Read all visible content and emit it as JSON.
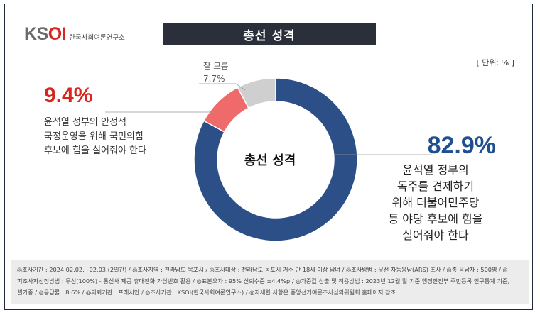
{
  "logo": {
    "mark_ks": "K",
    "mark_s": "S",
    "mark_oi": "OI",
    "subtitle": "한국사회여론연구소"
  },
  "title": "총선 성격",
  "unit": "[ 단위: % ]",
  "colors": {
    "navy": "#2b4f86",
    "red": "#ef6b6b",
    "grey": "#cfcfcf",
    "pct_red": "#d7261e",
    "pct_blue": "#1f4f8f"
  },
  "chart_data": {
    "type": "pie",
    "style": "donut",
    "center_label": "총선 성격",
    "slices": [
      {
        "label": "윤석열 정부의 독주를 견제하기 위해 더불어민주당 등 야당 후보에 힘을 실어줘야 한다",
        "value": 82.9,
        "value_text": "82.9%",
        "color": "#2b4f86"
      },
      {
        "label": "윤석열 정부의 안정적 국정운영을 위해 국민의힘 후보에 힘을 실어줘야 한다",
        "value": 9.4,
        "value_text": "9.4%",
        "color": "#ef6b6b"
      },
      {
        "label": "잘 모름",
        "value": 7.7,
        "value_text": "7.7%",
        "color": "#cfcfcf"
      }
    ]
  },
  "left_text": [
    "윤석열 정부의 안정적",
    "국정운영을 위해 국민의힘",
    "후보에 힘을 실어줘야 한다"
  ],
  "right_text": [
    "윤석열 정부의",
    "독주를 견제하기",
    "위해 더불어민주당",
    "등 야당 후보에 힘을",
    "실어줘야 한다"
  ],
  "footer": {
    "line1": "◎조사기간 : 2024.02.02.~02.03.(2일간)  / ◎조사지역 : 전라남도 목포시 / ◎조사대상 : 전라남도 목포시 거주 만 18세 이상 남녀 / ◎조사방법 : 무선 자동응답(ARS) 조사 / ◎총 응답자 : 500명 / ◎피조사자선정방법 : 무선(100%) - 통신사 제공 휴대전화 가상번호 활용 / ◎표본오차 : 95% 신뢰수준 ±4.4%p / ◎가중값 산출 및 적용방법 : 2023년 12월 말 기준 행정안전부 주민등록 인구통계 기준, 셀가중 / ◎응답률 : 8.6% / ◎의뢰기관 : 프레시안  / ◎조사기관 : KSOI(한국사회여론연구소) / ◎자세한 사항은 중앙선거여론조사심의위원회 홈페이지 참조"
  }
}
